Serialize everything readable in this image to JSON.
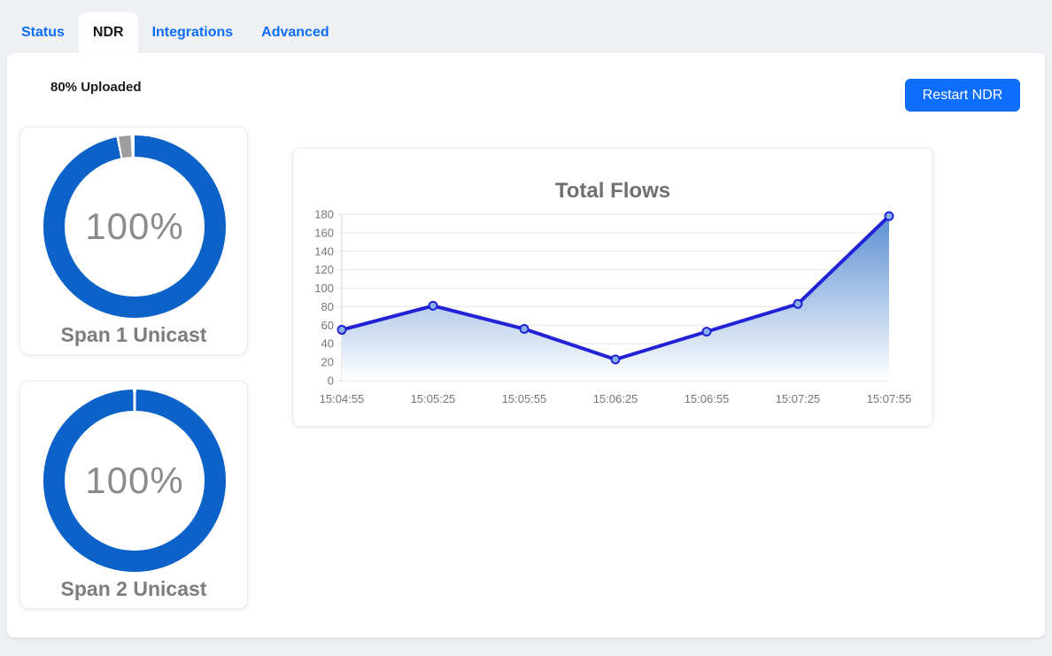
{
  "tabs": {
    "items": [
      {
        "label": "Status",
        "active": false
      },
      {
        "label": "NDR",
        "active": true
      },
      {
        "label": "Integrations",
        "active": false
      },
      {
        "label": "Advanced",
        "active": false
      }
    ]
  },
  "header": {
    "upload_status": "80% Uploaded",
    "restart_button_label": "Restart NDR"
  },
  "colors": {
    "accent_blue": "#0d6efd",
    "donut_blue": "#0c62c8",
    "donut_gray": "#9e9e9e",
    "line_blue": "#2121d8",
    "marker_fill": "#8ab0e8",
    "area_top": "#5a8ed2",
    "area_bottom": "#ffffff",
    "grid": "#e6e6e6",
    "axis": "#d4d4d4",
    "muted_text": "#757575"
  },
  "gauges": [
    {
      "label": "Span 1 Unicast",
      "value_label": "100%",
      "segments": [
        {
          "color": "#0c62c8",
          "from": 0,
          "to": 348.5
        },
        {
          "color": "#ffffff",
          "from": 348.5,
          "to": 350
        },
        {
          "color": "#9e9e9e",
          "from": 350,
          "to": 357.5
        },
        {
          "color": "#ffffff",
          "from": 357.5,
          "to": 360
        }
      ]
    },
    {
      "label": "Span 2 Unicast",
      "value_label": "100%",
      "segments": [
        {
          "color": "#ffffff",
          "from": 0,
          "to": 1
        },
        {
          "color": "#0c62c8",
          "from": 1,
          "to": 359
        },
        {
          "color": "#ffffff",
          "from": 359,
          "to": 360
        }
      ]
    }
  ],
  "chart_data": {
    "type": "area",
    "title": "Total Flows",
    "categories": [
      "15:04:55",
      "15:05:25",
      "15:05:55",
      "15:06:25",
      "15:06:55",
      "15:07:25",
      "15:07:55"
    ],
    "values": [
      55,
      81,
      56,
      23,
      53,
      83,
      178
    ],
    "xlabel": "",
    "ylabel": "",
    "ylim": [
      0,
      180
    ],
    "ytick_step": 20,
    "grid": true,
    "legend": "none"
  }
}
